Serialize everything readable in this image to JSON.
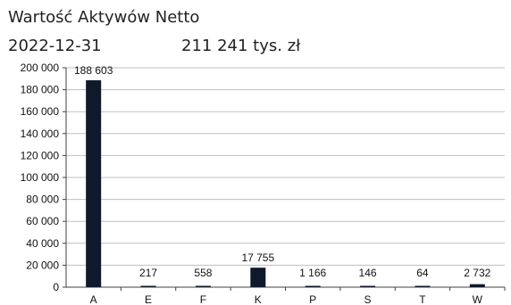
{
  "header": {
    "title": "Wartość Aktywów Netto",
    "date": "2022-12-31",
    "total": "211 241 tys. zł"
  },
  "colors": {
    "bar": "#0e1a2b",
    "grid": "#bfbfbf",
    "axis": "#404040"
  },
  "chart_data": {
    "type": "bar",
    "title": "Wartość Aktywów Netto",
    "xlabel": "",
    "ylabel": "",
    "categories": [
      "A",
      "E",
      "F",
      "K",
      "P",
      "S",
      "T",
      "W"
    ],
    "values": [
      188603,
      217,
      558,
      17755,
      1166,
      146,
      64,
      2732
    ],
    "value_labels": [
      "188 603",
      "217",
      "558",
      "17 755",
      "1 166",
      "146",
      "64",
      "2 732"
    ],
    "ylim": [
      0,
      200000
    ],
    "yticks": [
      0,
      20000,
      40000,
      60000,
      80000,
      100000,
      120000,
      140000,
      160000,
      180000,
      200000
    ],
    "ytick_labels": [
      "0",
      "20 000",
      "40 000",
      "60 000",
      "80 000",
      "100 000",
      "120 000",
      "140 000",
      "160 000",
      "180 000",
      "200 000"
    ],
    "grid": true,
    "legend": "none"
  }
}
